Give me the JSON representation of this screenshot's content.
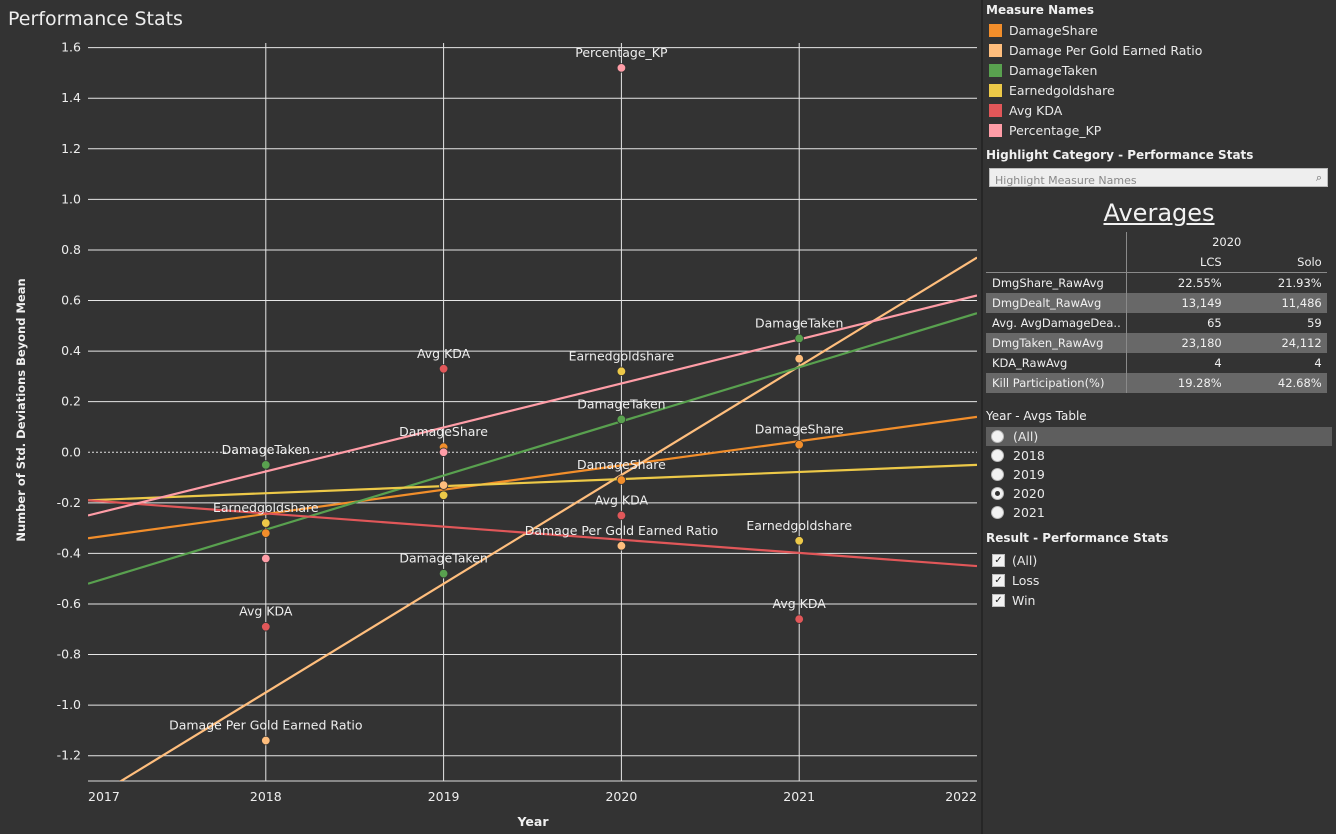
{
  "title": "Performance Stats",
  "legend": {
    "title": "Measure Names",
    "items": [
      {
        "label": "DamageShare",
        "color": "#f28e2b"
      },
      {
        "label": "Damage Per Gold Earned Ratio",
        "color": "#ffbe7d"
      },
      {
        "label": "DamageTaken",
        "color": "#59a14f"
      },
      {
        "label": "Earnedgoldshare",
        "color": "#edc948"
      },
      {
        "label": "Avg KDA",
        "color": "#e15759"
      },
      {
        "label": "Percentage_KP",
        "color": "#ff9da7"
      }
    ]
  },
  "highlight": {
    "title": "Highlight Category - Performance Stats",
    "placeholder": "Highlight Measure Names",
    "icon": "search-icon"
  },
  "averages": {
    "title": "Averages",
    "year": "2020",
    "columns": [
      "LCS",
      "Solo"
    ],
    "rows": [
      {
        "label": "DmgShare_RawAvg",
        "lcs": "22.55%",
        "solo": "21.93%"
      },
      {
        "label": "DmgDealt_RawAvg",
        "lcs": "13,149",
        "solo": "11,486"
      },
      {
        "label": "Avg. AvgDamageDea..",
        "lcs": "65",
        "solo": "59"
      },
      {
        "label": "DmgTaken_RawAvg",
        "lcs": "23,180",
        "solo": "24,112"
      },
      {
        "label": "KDA_RawAvg",
        "lcs": "4",
        "solo": "4"
      },
      {
        "label": "Kill Participation(%)",
        "lcs": "19.28%",
        "solo": "42.68%"
      }
    ]
  },
  "year_filter": {
    "title": "Year - Avgs Table",
    "options": [
      "(All)",
      "2018",
      "2019",
      "2020",
      "2021"
    ],
    "selected": "2020"
  },
  "result_filter": {
    "title": "Result - Performance Stats",
    "options": [
      {
        "label": "(All)",
        "checked": true
      },
      {
        "label": "Loss",
        "checked": true
      },
      {
        "label": "Win",
        "checked": true
      }
    ]
  },
  "chart_data": {
    "type": "scatter",
    "xlabel": "Year",
    "ylabel": "Number of Std. Deviations Beyond Mean",
    "xlim": [
      2017,
      2022
    ],
    "ylim": [
      -1.3,
      1.65
    ],
    "x_ticks": [
      "2017",
      "2018",
      "2019",
      "2020",
      "2021",
      "2022"
    ],
    "y_ticks": [
      "1.6",
      "1.4",
      "1.2",
      "1.0",
      "0.8",
      "0.6",
      "0.4",
      "0.2",
      "0.0",
      "-0.2",
      "-0.4",
      "-0.6",
      "-0.8",
      "-1.0",
      "-1.2"
    ],
    "reference_line": 0,
    "trend_lines": true,
    "series": [
      {
        "name": "DamageShare",
        "color": "#f28e2b",
        "points": [
          {
            "x": 2018,
            "y": -0.32,
            "label": ""
          },
          {
            "x": 2019,
            "y": 0.02,
            "label": "DamageShare"
          },
          {
            "x": 2020,
            "y": -0.11,
            "label": "DamageShare"
          },
          {
            "x": 2021,
            "y": 0.03,
            "label": "DamageShare"
          }
        ],
        "trend": [
          -0.34,
          0.14
        ]
      },
      {
        "name": "Damage Per Gold Earned Ratio",
        "color": "#ffbe7d",
        "points": [
          {
            "x": 2018,
            "y": -1.14,
            "label": "Damage Per Gold Earned Ratio"
          },
          {
            "x": 2019,
            "y": -0.13,
            "label": ""
          },
          {
            "x": 2020,
            "y": -0.37,
            "label": "Damage Per Gold Earned Ratio"
          },
          {
            "x": 2021,
            "y": 0.37,
            "label": ""
          }
        ],
        "trend": [
          -1.38,
          0.77
        ]
      },
      {
        "name": "DamageTaken",
        "color": "#59a14f",
        "points": [
          {
            "x": 2018,
            "y": -0.05,
            "label": "DamageTaken"
          },
          {
            "x": 2019,
            "y": -0.48,
            "label": "DamageTaken"
          },
          {
            "x": 2020,
            "y": 0.13,
            "label": "DamageTaken"
          },
          {
            "x": 2021,
            "y": 0.45,
            "label": "DamageTaken"
          }
        ],
        "trend": [
          -0.52,
          0.55
        ]
      },
      {
        "name": "Earnedgoldshare",
        "color": "#edc948",
        "points": [
          {
            "x": 2018,
            "y": -0.28,
            "label": "Earnedgoldshare"
          },
          {
            "x": 2019,
            "y": -0.17,
            "label": ""
          },
          {
            "x": 2020,
            "y": 0.32,
            "label": "Earnedgoldshare"
          },
          {
            "x": 2021,
            "y": -0.35,
            "label": "Earnedgoldshare"
          }
        ],
        "trend": [
          -0.19,
          -0.05
        ]
      },
      {
        "name": "Avg KDA",
        "color": "#e15759",
        "points": [
          {
            "x": 2018,
            "y": -0.69,
            "label": "Avg KDA"
          },
          {
            "x": 2019,
            "y": 0.33,
            "label": "Avg KDA"
          },
          {
            "x": 2020,
            "y": -0.25,
            "label": "Avg KDA"
          },
          {
            "x": 2021,
            "y": -0.66,
            "label": "Avg KDA"
          }
        ],
        "trend": [
          -0.19,
          -0.45
        ]
      },
      {
        "name": "Percentage_KP",
        "color": "#ff9da7",
        "points": [
          {
            "x": 2018,
            "y": -0.42,
            "label": ""
          },
          {
            "x": 2019,
            "y": 0.0,
            "label": ""
          },
          {
            "x": 2020,
            "y": 1.52,
            "label": "Percentage_KP"
          }
        ],
        "trend": [
          -0.25,
          0.62
        ]
      }
    ]
  }
}
